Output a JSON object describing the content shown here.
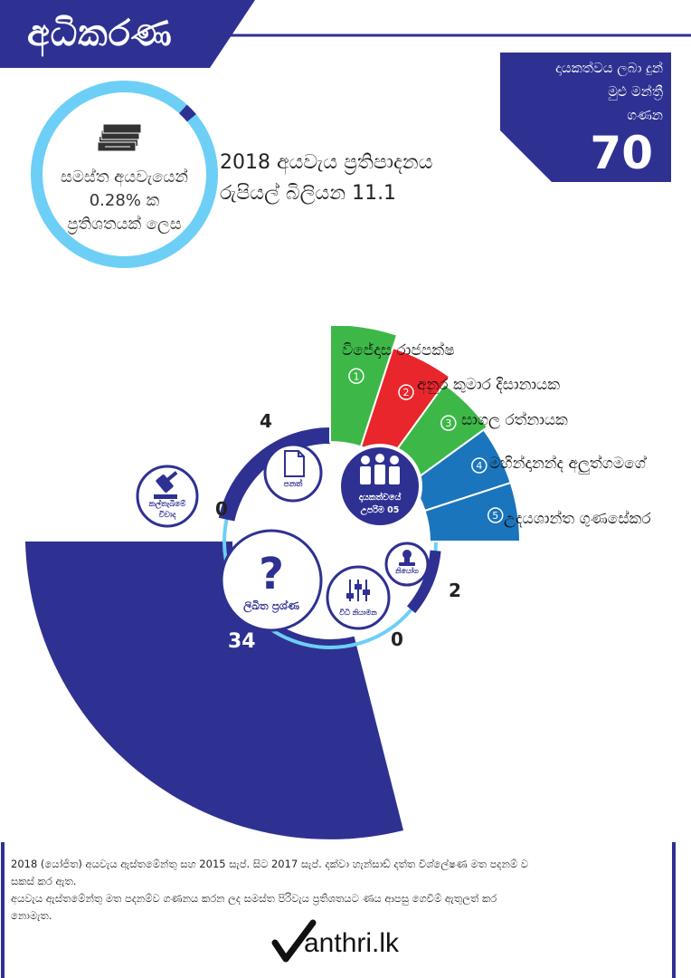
{
  "header": {
    "title": "අධිකරණ"
  },
  "members_box": {
    "lines": [
      "දායකත්වය ලබා දුන්",
      "මුළු මන්ත්‍රී",
      "ගණන"
    ],
    "count": "70"
  },
  "budget_share": {
    "lines": [
      "සමස්ත අයවැයෙන්",
      "0.28% ක",
      "ප්‍රතිශතයක් ලෙස"
    ],
    "percent": 0.28
  },
  "budget_proposal": {
    "line1": "2018 අයවැය ප්‍රතිපාදනය",
    "line2": "රුපියල් බිලියන 11.1"
  },
  "top_contributors": {
    "ranks": [
      "1",
      "2",
      "3",
      "4",
      "5"
    ],
    "names": [
      "විජේදාස රාජපක්ෂ",
      "අනුර කුමාර දිසානායක",
      "සාගල රත්නායක",
      "මහින්දානන්ද අලුත්ගමගේ",
      "උදයශාන්ත ගුණසේකර"
    ],
    "colors": [
      "#3db848",
      "#e8262c",
      "#3db848",
      "#1b75bc",
      "#1b75bc"
    ],
    "center_label_1": "දායකත්වයේ",
    "center_label_2": "උපරිම 05"
  },
  "activities": {
    "bills": {
      "label": "පනත්",
      "value": "4"
    },
    "adjournment_debates": {
      "label_1": "කල්තැබීමේ",
      "label_2": "විවාද",
      "value": "0"
    },
    "written_questions": {
      "label": "ලිඛිත ප්‍රශ්ණ",
      "value": "34"
    },
    "standing_orders": {
      "label": "විධි නියාමන",
      "value": "0"
    },
    "appointments": {
      "label": "නියෝග",
      "value": "2"
    }
  },
  "footnote": {
    "line1": "2018 (යෝජිත) අයවැය ඇස්තමේන්තු සහ 2015 සැප්. සිට 2017 සැප්. දක්වා හැන්සාඩ් දත්ත විශ්ලේෂණ මත පදනම් ව",
    "line2": "සකස් කර ඇත.",
    "line3": "අයවැය ඇස්තමේන්තු මත පදනම්ව ගණනය කරන ලද සමස්ත පිරිවැය ප්‍රතිශතයට ණය ආපසු ගෙවීම් ඇතුලත් කර",
    "line4": "නොමැත."
  },
  "logo": {
    "text": "anthri.lk"
  },
  "colors": {
    "navy": "#2e3192",
    "light_blue": "#6dcff6",
    "green": "#3db848",
    "red": "#e8262c",
    "blue": "#1b75bc"
  }
}
